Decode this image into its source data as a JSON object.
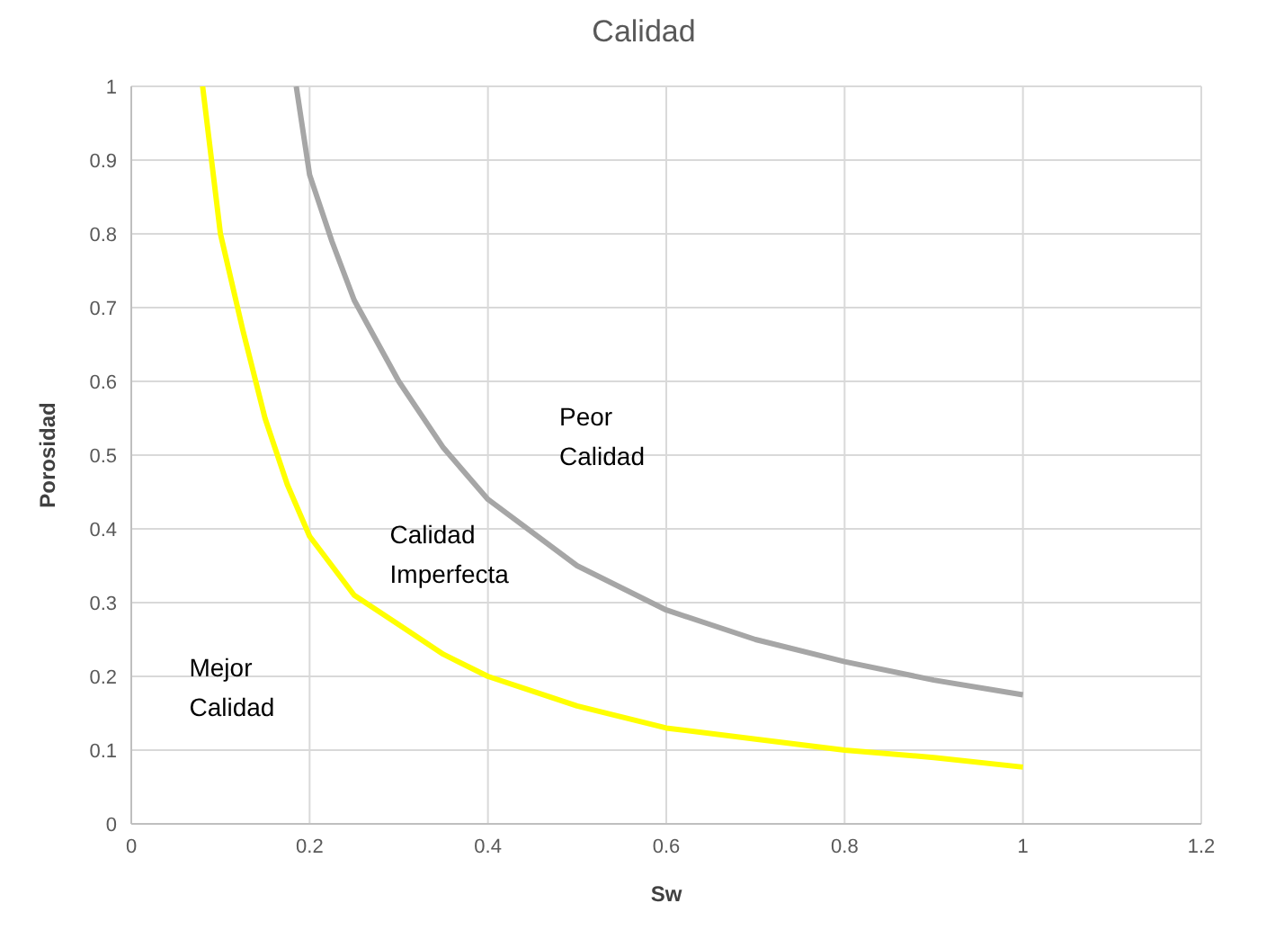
{
  "chart_data": {
    "type": "line",
    "title": "Calidad",
    "xlabel": "Sw",
    "ylabel": "Porosidad",
    "xlim": [
      0,
      1.2
    ],
    "xticks": [
      0,
      0.2,
      0.4,
      0.6,
      0.8,
      1,
      1.2
    ],
    "ylim": [
      0,
      1
    ],
    "yticks": [
      0,
      0.1,
      0.2,
      0.3,
      0.4,
      0.5,
      0.6,
      0.7,
      0.8,
      0.9,
      1
    ],
    "grid": true,
    "legend": false,
    "marker": "none",
    "line_style": "solid",
    "series": [
      {
        "color": "#ffff00",
        "x": [
          0.08,
          0.1,
          0.125,
          0.15,
          0.175,
          0.2,
          0.25,
          0.3,
          0.35,
          0.4,
          0.5,
          0.6,
          0.7,
          0.8,
          0.9,
          1
        ],
        "values": [
          1,
          0.8,
          0.67,
          0.55,
          0.46,
          0.39,
          0.31,
          0.27,
          0.23,
          0.2,
          0.16,
          0.13,
          0.115,
          0.1,
          0.09,
          0.077
        ]
      },
      {
        "color": "#a6a6a6",
        "x": [
          0.185,
          0.2,
          0.225,
          0.25,
          0.3,
          0.35,
          0.4,
          0.5,
          0.6,
          0.7,
          0.8,
          0.9,
          1
        ],
        "values": [
          1,
          0.88,
          0.79,
          0.71,
          0.6,
          0.51,
          0.44,
          0.35,
          0.29,
          0.25,
          0.22,
          0.195,
          0.175
        ]
      }
    ],
    "annotations": [
      "Peor\nCalidad",
      "Calidad\nImperfecta",
      "Mejor\nCalidad"
    ]
  }
}
